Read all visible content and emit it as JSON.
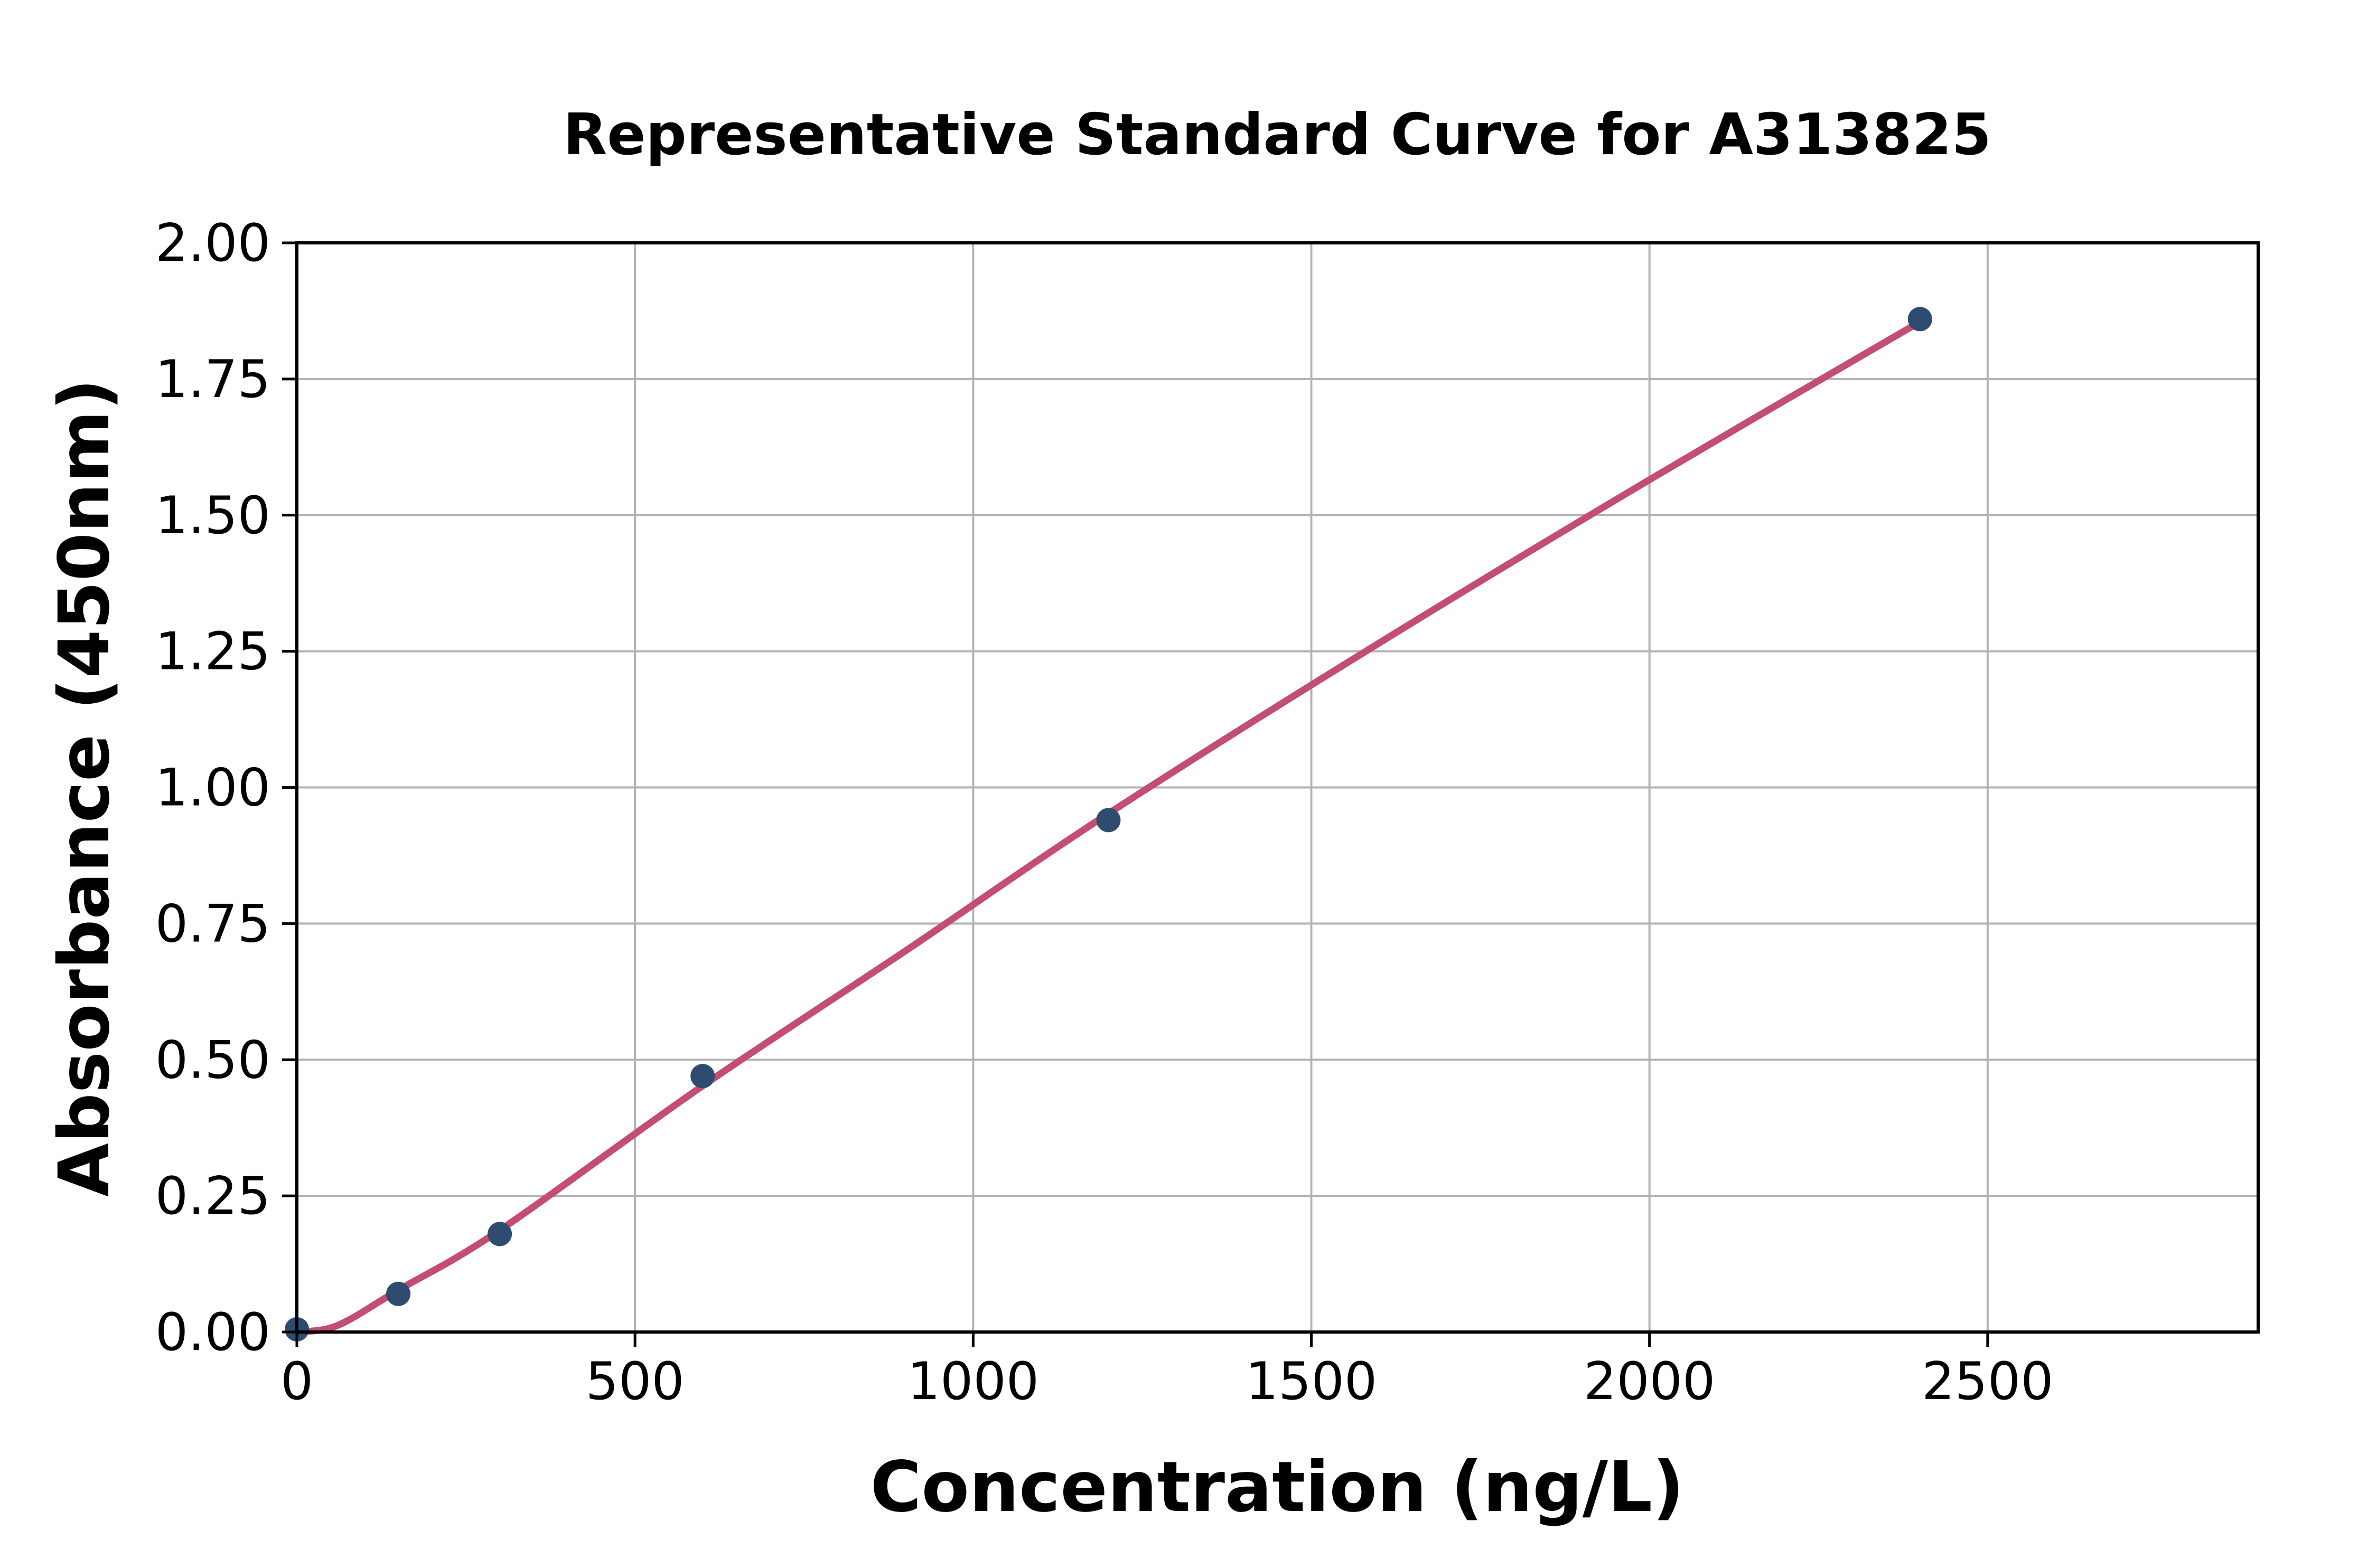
{
  "chart_data": {
    "type": "scatter",
    "title": "Representative Standard Curve for A313825",
    "xlabel": "Concentration (ng/L)",
    "ylabel": "Absorbance (450nm)",
    "xlim": [
      0,
      2900
    ],
    "ylim": [
      0,
      2.0
    ],
    "xticks": [
      {
        "value": 0,
        "label": "0"
      },
      {
        "value": 500,
        "label": "500"
      },
      {
        "value": 1000,
        "label": "1000"
      },
      {
        "value": 1500,
        "label": "1500"
      },
      {
        "value": 2000,
        "label": "2000"
      },
      {
        "value": 2500,
        "label": "2500"
      }
    ],
    "yticks": [
      {
        "value": 0.0,
        "label": "0.00"
      },
      {
        "value": 0.25,
        "label": "0.25"
      },
      {
        "value": 0.5,
        "label": "0.50"
      },
      {
        "value": 0.75,
        "label": "0.75"
      },
      {
        "value": 1.0,
        "label": "1.00"
      },
      {
        "value": 1.25,
        "label": "1.25"
      },
      {
        "value": 1.5,
        "label": "1.50"
      },
      {
        "value": 1.75,
        "label": "1.75"
      },
      {
        "value": 2.0,
        "label": "2.00"
      }
    ],
    "grid": true,
    "legend": "none",
    "series": [
      {
        "name": "standards",
        "kind": "scatter",
        "x": [
          0,
          150,
          300,
          600,
          1200,
          2400
        ],
        "y": [
          0.005,
          0.07,
          0.18,
          0.47,
          0.94,
          1.86
        ]
      },
      {
        "name": "fitted-curve",
        "kind": "line",
        "x": [
          0,
          60,
          150,
          300,
          600,
          900,
          1200,
          1600,
          2000,
          2400
        ],
        "y": [
          0.0,
          0.012,
          0.077,
          0.187,
          0.452,
          0.7,
          0.952,
          1.265,
          1.565,
          1.855
        ]
      }
    ],
    "colors": {
      "marker": "#2e4c6f",
      "line": "#c34d74",
      "grid": "#b3b3b3",
      "axis": "#000000",
      "background": "#ffffff"
    }
  }
}
